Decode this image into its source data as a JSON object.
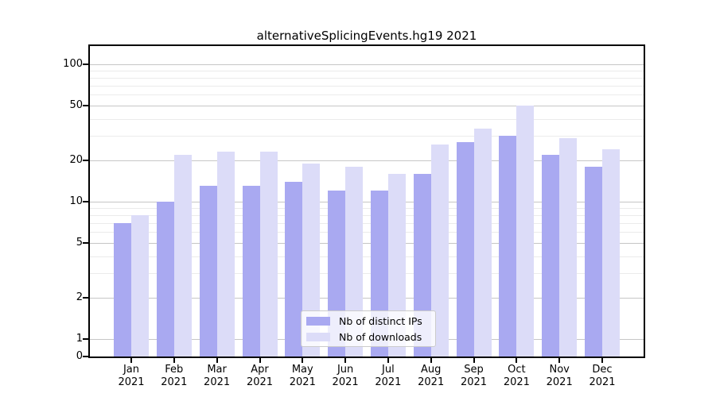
{
  "chart_data": {
    "type": "bar",
    "title": "alternativeSplicingEvents.hg19 2021",
    "categories": [
      "Jan 2021",
      "Feb 2021",
      "Mar 2021",
      "Apr 2021",
      "May 2021",
      "Jun 2021",
      "Jul 2021",
      "Aug 2021",
      "Sep 2021",
      "Oct 2021",
      "Nov 2021",
      "Dec 2021"
    ],
    "series": [
      {
        "name": "Nb of distinct IPs",
        "color": "#a9a9f1",
        "values": [
          7,
          10,
          13,
          13,
          14,
          12,
          12,
          16,
          27,
          30,
          22,
          18
        ]
      },
      {
        "name": "Nb of downloads",
        "color": "#dcdcf8",
        "values": [
          8,
          22,
          23,
          23,
          19,
          18,
          16,
          26,
          34,
          50,
          29,
          24
        ]
      }
    ],
    "yscale": "symlog",
    "y_major_ticks": [
      0,
      1,
      2,
      5,
      10,
      20,
      50,
      100
    ],
    "y_minor_gridlines": [
      3,
      4,
      6,
      7,
      8,
      9,
      30,
      40,
      60,
      70,
      80,
      90
    ],
    "ylim": [
      0,
      140
    ],
    "grid": true,
    "legend_position": "lower center"
  },
  "colors": {
    "background": "#ffffff",
    "bar_ips": "#a9a9f1",
    "bar_downloads": "#dcdcf8",
    "grid_major": "#c6c6c6",
    "grid_minor": "#ebebeb",
    "axis": "#000000",
    "text": "#000000",
    "legend_border": "#cbcbcb"
  }
}
